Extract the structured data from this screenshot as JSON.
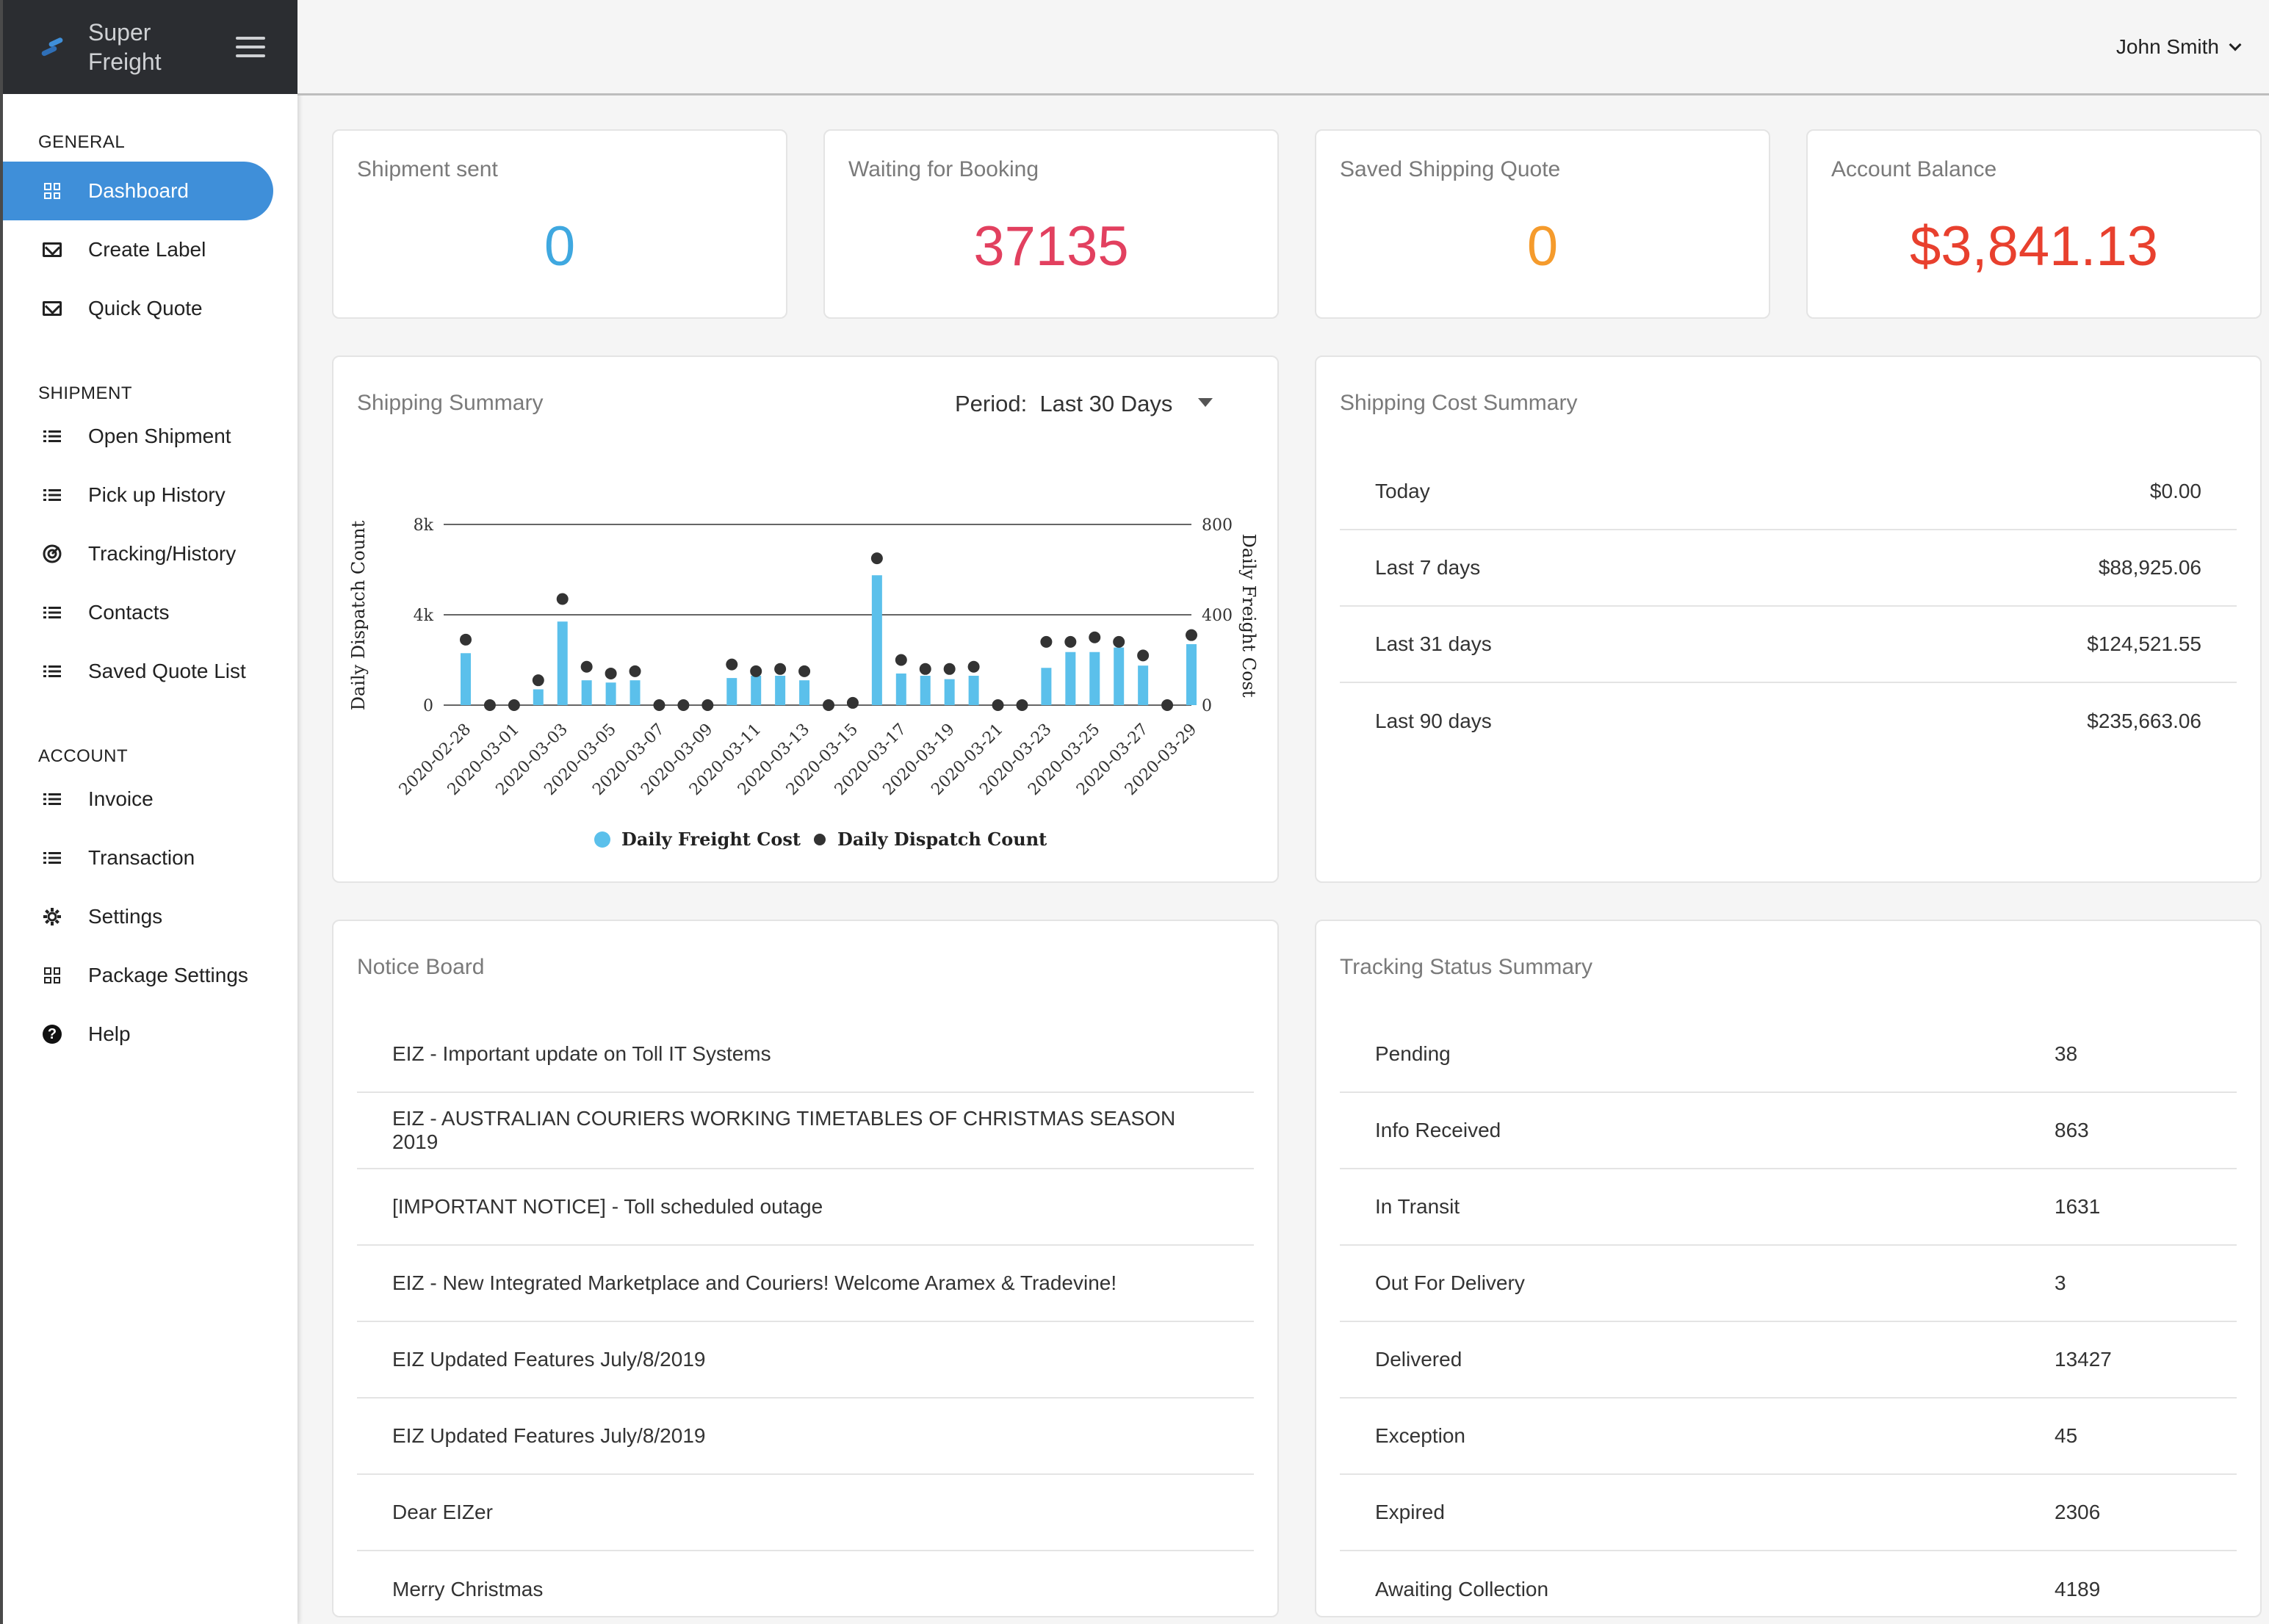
{
  "brand": {
    "name_line1": "Super",
    "name_line2": "Freight"
  },
  "user": {
    "name": "John Smith"
  },
  "sidebar": {
    "sections": {
      "general": "GENERAL",
      "shipment": "SHIPMENT",
      "account": "ACCOUNT"
    },
    "items": {
      "dashboard": "Dashboard",
      "create_label": "Create Label",
      "quick_quote": "Quick Quote",
      "open_shipment": "Open Shipment",
      "pickup_history": "Pick up History",
      "tracking_history": "Tracking/History",
      "contacts": "Contacts",
      "saved_quote_list": "Saved Quote List",
      "invoice": "Invoice",
      "transaction": "Transaction",
      "settings": "Settings",
      "package_settings": "Package Settings",
      "help": "Help"
    }
  },
  "stats": {
    "shipment_sent": {
      "label": "Shipment sent",
      "value": "0",
      "color": "#3fa8e0"
    },
    "waiting_booking": {
      "label": "Waiting for Booking",
      "value": "37135",
      "color": "#e2405f"
    },
    "saved_quote": {
      "label": "Saved Shipping Quote",
      "value": "0",
      "color": "#f59b2c"
    },
    "account_balance": {
      "label": "Account Balance",
      "value": "$3,841.13",
      "color": "#e8402e"
    }
  },
  "shipping_summary": {
    "title": "Shipping Summary",
    "period_label": "Period:",
    "period_value": "Last 30 Days"
  },
  "chart_data": {
    "type": "bar",
    "x": [
      "2020-02-28",
      "2020-02-29",
      "2020-03-01",
      "2020-03-02",
      "2020-03-03",
      "2020-03-04",
      "2020-03-05",
      "2020-03-06",
      "2020-03-07",
      "2020-03-08",
      "2020-03-09",
      "2020-03-10",
      "2020-03-11",
      "2020-03-12",
      "2020-03-13",
      "2020-03-14",
      "2020-03-15",
      "2020-03-16",
      "2020-03-17",
      "2020-03-18",
      "2020-03-19",
      "2020-03-20",
      "2020-03-21",
      "2020-03-22",
      "2020-03-23",
      "2020-03-24",
      "2020-03-25",
      "2020-03-26",
      "2020-03-27",
      "2020-03-28",
      "2020-03-29"
    ],
    "tick_labels": [
      "2020-02-28",
      "2020-03-01",
      "2020-03-03",
      "2020-03-05",
      "2020-03-07",
      "2020-03-09",
      "2020-03-11",
      "2020-03-13",
      "2020-03-15",
      "2020-03-17",
      "2020-03-19",
      "2020-03-21",
      "2020-03-23",
      "2020-03-25",
      "2020-03-27",
      "2020-03-29"
    ],
    "series": [
      {
        "name": "Daily Freight Cost",
        "kind": "bar",
        "axis": "right",
        "color": "#5bc0eb",
        "values": [
          230,
          0,
          0,
          70,
          370,
          110,
          100,
          110,
          0,
          0,
          0,
          120,
          130,
          130,
          110,
          0,
          0,
          575,
          140,
          130,
          115,
          130,
          0,
          0,
          165,
          235,
          235,
          255,
          175,
          0,
          270
        ]
      },
      {
        "name": "Daily Dispatch Count",
        "kind": "dot",
        "axis": "left",
        "color": "#333333",
        "values": [
          2900,
          0,
          0,
          1100,
          4700,
          1700,
          1400,
          1500,
          0,
          0,
          0,
          1800,
          1500,
          1600,
          1500,
          0,
          100,
          6500,
          2000,
          1600,
          1600,
          1700,
          0,
          0,
          2800,
          2800,
          3000,
          2800,
          2200,
          0,
          3100
        ]
      }
    ],
    "ylabel_left": "Daily Dispatch Count",
    "ylabel_right": "Daily Freight Cost",
    "y_left_ticks": [
      "0",
      "4k",
      "8k"
    ],
    "y_right_ticks": [
      "0",
      "400",
      "800"
    ],
    "ylim_left": [
      0,
      8000
    ],
    "ylim_right": [
      0,
      800
    ],
    "legend": "bottom"
  },
  "cost_summary": {
    "title": "Shipping Cost Summary",
    "rows": [
      {
        "label": "Today",
        "value": "$0.00"
      },
      {
        "label": "Last 7 days",
        "value": "$88,925.06"
      },
      {
        "label": "Last 31 days",
        "value": "$124,521.55"
      },
      {
        "label": "Last 90 days",
        "value": "$235,663.06"
      }
    ]
  },
  "notice_board": {
    "title": "Notice Board",
    "items": [
      "EIZ - Important update on Toll IT Systems",
      "EIZ - AUSTRALIAN COURIERS WORKING TIMETABLES OF CHRISTMAS SEASON 2019",
      "[IMPORTANT NOTICE] - Toll scheduled outage",
      "EIZ - New Integrated Marketplace and Couriers! Welcome Aramex & Tradevine!",
      "EIZ Updated Features July/8/2019",
      "EIZ Updated Features July/8/2019",
      "Dear EIZer",
      "Merry Christmas"
    ]
  },
  "tracking_summary": {
    "title": "Tracking Status Summary",
    "rows": [
      {
        "label": "Pending",
        "value": "38"
      },
      {
        "label": "Info Received",
        "value": "863"
      },
      {
        "label": "In Transit",
        "value": "1631"
      },
      {
        "label": "Out For Delivery",
        "value": "3"
      },
      {
        "label": "Delivered",
        "value": "13427"
      },
      {
        "label": "Exception",
        "value": "45"
      },
      {
        "label": "Expired",
        "value": "2306"
      },
      {
        "label": "Awaiting Collection",
        "value": "4189"
      }
    ]
  }
}
